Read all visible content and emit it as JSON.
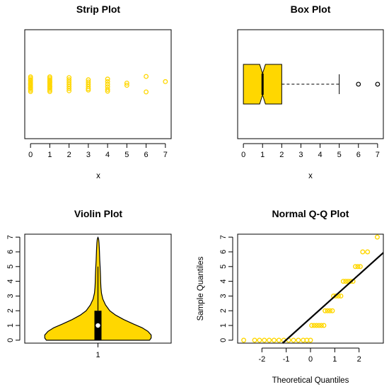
{
  "palette": {
    "fill": "#FFD700",
    "edge": "#000000"
  },
  "chart_data": [
    {
      "type": "scatter",
      "title": "Strip Plot",
      "xlabel": "x",
      "xlim": [
        -0.3,
        7.3
      ],
      "xticks": [
        "0",
        "1",
        "2",
        "3",
        "4",
        "5",
        "6",
        "7"
      ],
      "points": [
        {
          "x": 0,
          "y": 0.0
        },
        {
          "x": 0,
          "y": 0.08
        },
        {
          "x": 0,
          "y": -0.08
        },
        {
          "x": 0,
          "y": 0.16
        },
        {
          "x": 0,
          "y": -0.16
        },
        {
          "x": 0,
          "y": 0.24
        },
        {
          "x": 0,
          "y": -0.24
        },
        {
          "x": 0,
          "y": 0.32
        },
        {
          "x": 0,
          "y": -0.32
        },
        {
          "x": 0,
          "y": 0.4
        },
        {
          "x": 0,
          "y": -0.4
        },
        {
          "x": 0,
          "y": 0.04
        },
        {
          "x": 0,
          "y": -0.04
        },
        {
          "x": 0,
          "y": 0.2
        },
        {
          "x": 0,
          "y": -0.2
        },
        {
          "x": 1,
          "y": 0.0
        },
        {
          "x": 1,
          "y": 0.08
        },
        {
          "x": 1,
          "y": -0.08
        },
        {
          "x": 1,
          "y": 0.16
        },
        {
          "x": 1,
          "y": -0.16
        },
        {
          "x": 1,
          "y": 0.24
        },
        {
          "x": 1,
          "y": -0.24
        },
        {
          "x": 1,
          "y": 0.32
        },
        {
          "x": 1,
          "y": -0.32
        },
        {
          "x": 1,
          "y": 0.4
        },
        {
          "x": 1,
          "y": -0.4
        },
        {
          "x": 1,
          "y": 0.12
        },
        {
          "x": 1,
          "y": -0.12
        },
        {
          "x": 2,
          "y": 0.0
        },
        {
          "x": 2,
          "y": 0.12
        },
        {
          "x": 2,
          "y": -0.12
        },
        {
          "x": 2,
          "y": 0.24
        },
        {
          "x": 2,
          "y": -0.24
        },
        {
          "x": 2,
          "y": 0.36
        },
        {
          "x": 2,
          "y": -0.36
        },
        {
          "x": 3,
          "y": 0.0
        },
        {
          "x": 3,
          "y": 0.12
        },
        {
          "x": 3,
          "y": -0.12
        },
        {
          "x": 3,
          "y": 0.24
        },
        {
          "x": 3,
          "y": -0.24
        },
        {
          "x": 3,
          "y": 0.32
        },
        {
          "x": 4,
          "y": 0.0
        },
        {
          "x": 4,
          "y": 0.14
        },
        {
          "x": 4,
          "y": -0.14
        },
        {
          "x": 4,
          "y": 0.28
        },
        {
          "x": 4,
          "y": -0.28
        },
        {
          "x": 4,
          "y": 0.38
        },
        {
          "x": 5,
          "y": 0.06
        },
        {
          "x": 5,
          "y": -0.06
        },
        {
          "x": 6,
          "y": 0.42
        },
        {
          "x": 6,
          "y": -0.42
        },
        {
          "x": 7,
          "y": -0.14
        }
      ]
    },
    {
      "type": "box",
      "title": "Box Plot",
      "xlabel": "x",
      "xlim": [
        -0.3,
        7.3
      ],
      "xticks": [
        "0",
        "1",
        "2",
        "3",
        "4",
        "5",
        "6",
        "7"
      ],
      "notch": true,
      "stats": {
        "whisker_low": 0,
        "q1": 0,
        "median": 1,
        "q3": 2,
        "whisker_high": 5,
        "notch_low": 0.85,
        "notch_high": 1.15
      },
      "outliers": [
        6,
        7
      ]
    },
    {
      "type": "violin",
      "title": "Violin Plot",
      "xticks": [
        "1"
      ],
      "ylim": [
        -0.2,
        7.2
      ],
      "yticks": [
        "0",
        "1",
        "2",
        "3",
        "4",
        "5",
        "6",
        "7"
      ],
      "density": [
        [
          0.0,
          0.96
        ],
        [
          0.15,
          0.99
        ],
        [
          0.35,
          0.99
        ],
        [
          0.6,
          0.93
        ],
        [
          0.85,
          0.82
        ],
        [
          1.1,
          0.66
        ],
        [
          1.4,
          0.48
        ],
        [
          1.7,
          0.33
        ],
        [
          2.0,
          0.22
        ],
        [
          2.4,
          0.14
        ],
        [
          2.8,
          0.09
        ],
        [
          3.2,
          0.065
        ],
        [
          3.6,
          0.055
        ],
        [
          4.0,
          0.05
        ],
        [
          4.3,
          0.048
        ],
        [
          4.6,
          0.045
        ],
        [
          5.0,
          0.04
        ],
        [
          5.4,
          0.034
        ],
        [
          5.8,
          0.03
        ],
        [
          6.2,
          0.026
        ],
        [
          6.6,
          0.02
        ],
        [
          6.85,
          0.013
        ],
        [
          7.0,
          0.0
        ]
      ],
      "box": {
        "q1": 0,
        "median": 1,
        "q3": 2,
        "whisker_low": 0,
        "whisker_high": 5
      }
    },
    {
      "type": "qq",
      "title": "Normal Q-Q Plot",
      "xlabel": "Theoretical Quantiles",
      "ylabel": "Sample Quantiles",
      "xlim": [
        -3.0,
        3.0
      ],
      "ylim": [
        -0.2,
        7.2
      ],
      "xticks": [
        "-2",
        "-1",
        "0",
        "1",
        "2"
      ],
      "yticks": [
        "0",
        "1",
        "2",
        "3",
        "4",
        "5",
        "6",
        "7"
      ],
      "groups": [
        {
          "y": 0,
          "x": [
            -2.75,
            -2.3,
            -2.1,
            -1.9,
            -1.7,
            -1.5,
            -1.3,
            -1.1,
            -0.9,
            -0.7,
            -0.5,
            -0.3,
            -0.15,
            0.0
          ]
        },
        {
          "y": 1,
          "x": [
            0.05,
            0.15,
            0.25,
            0.35,
            0.45,
            0.55
          ]
        },
        {
          "y": 2,
          "x": [
            0.6,
            0.7,
            0.8,
            0.9
          ]
        },
        {
          "y": 3,
          "x": [
            0.95,
            1.05,
            1.15,
            1.25
          ]
        },
        {
          "y": 4,
          "x": [
            1.35,
            1.45,
            1.55,
            1.65,
            1.75
          ]
        },
        {
          "y": 5,
          "x": [
            1.85,
            1.95,
            2.05
          ]
        },
        {
          "y": 6,
          "x": [
            2.15,
            2.35
          ]
        },
        {
          "y": 7,
          "x": [
            2.75
          ]
        }
      ],
      "line": {
        "intercept": 1.5,
        "slope": 1.48
      }
    }
  ]
}
